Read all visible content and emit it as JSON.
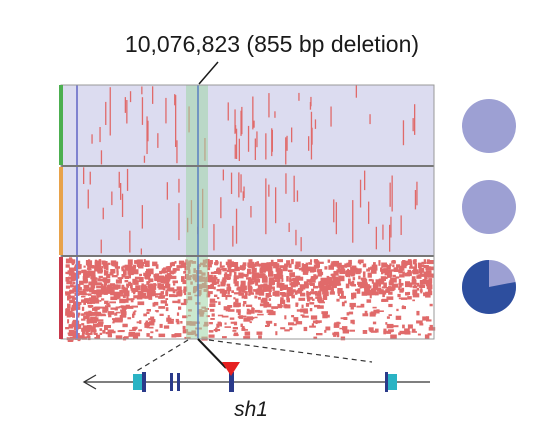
{
  "annotation": {
    "label": "10,076,823 (855 bp deletion)"
  },
  "gene": {
    "name": "sh1"
  },
  "panels": [
    {
      "name": "group-green",
      "stripe_color": "#4caf50",
      "background": "#dcdcf0",
      "variant_density": "sparse"
    },
    {
      "name": "group-orange",
      "stripe_color": "#e8a24a",
      "background": "#dcdcf0",
      "variant_density": "sparse"
    },
    {
      "name": "group-red",
      "stripe_color": "#c8384a",
      "background": "#ffffff",
      "variant_density": "dense"
    }
  ],
  "colors": {
    "variant": "#e06a6a",
    "highlight_band": "#9fd6a6",
    "blue_line": "#7f82cf",
    "deletion_marker": "#e62020",
    "exon": "#2ab3c4",
    "exon_dark": "#2a3a8a",
    "pie_light": "#9da0d3",
    "pie_dark": "#2d4e9e"
  },
  "pies": [
    {
      "name": "pie-group-green",
      "dark_fraction": 0.0
    },
    {
      "name": "pie-group-orange",
      "dark_fraction": 0.0
    },
    {
      "name": "pie-group-red",
      "dark_fraction": 0.78
    }
  ]
}
